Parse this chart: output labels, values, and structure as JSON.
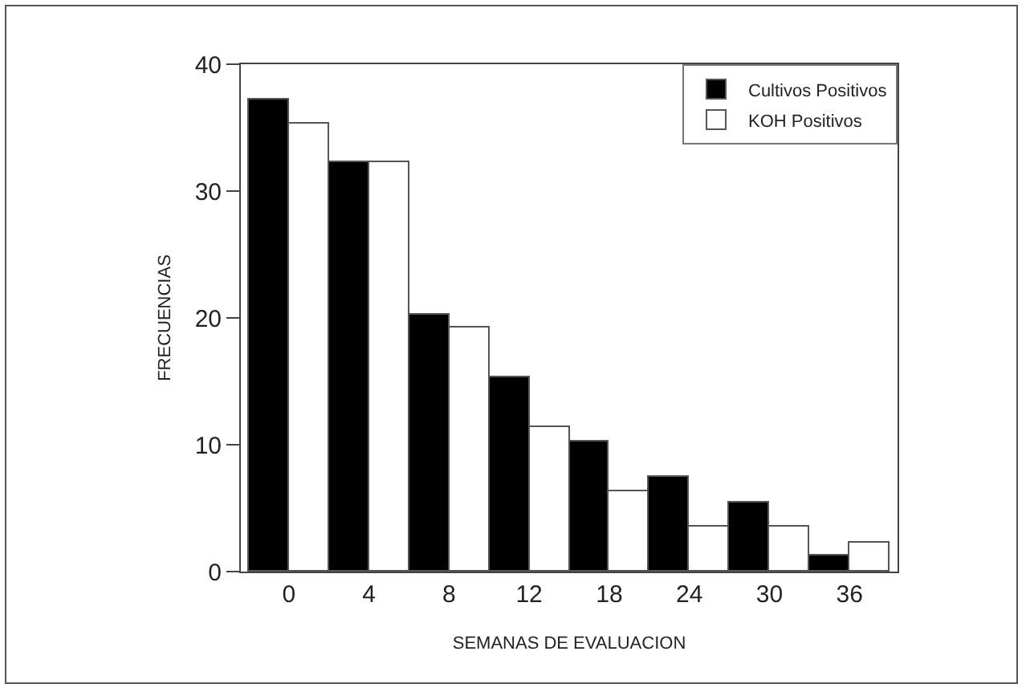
{
  "chart_data": {
    "type": "bar",
    "xlabel": "SEMANAS DE EVALUACION",
    "ylabel": "FRECUENCIAS",
    "categories": [
      "0",
      "4",
      "8",
      "12",
      "18",
      "24",
      "30",
      "36"
    ],
    "series": [
      {
        "name": "Cultivos Positivos",
        "color": "#000000",
        "values": [
          37.2,
          32.3,
          20.2,
          15.3,
          10.2,
          7.5,
          5.4,
          1.3
        ]
      },
      {
        "name": "KOH Positivos",
        "color": "#ffffff",
        "values": [
          35.3,
          32.3,
          19.3,
          11.4,
          6.3,
          3.5,
          3.6,
          2.3
        ]
      }
    ],
    "ylim": [
      0,
      40
    ],
    "yticks": [
      0,
      10,
      20,
      30,
      40
    ],
    "grid": false,
    "legend": "top right"
  }
}
